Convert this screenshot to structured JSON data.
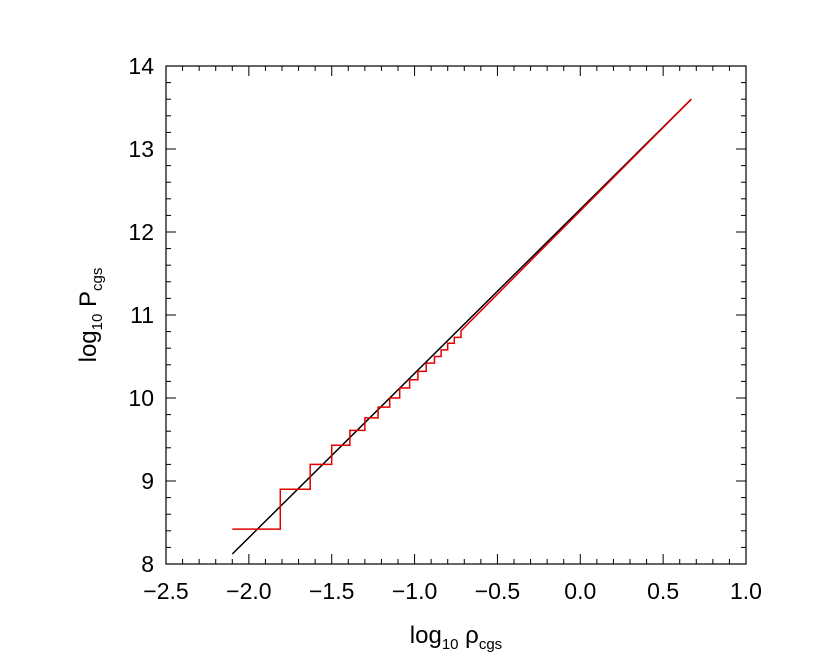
{
  "chart_data": {
    "type": "line",
    "title": "",
    "xlabel": {
      "base": "log",
      "sub1": "10",
      "mid": " ρ",
      "sub2": "cgs"
    },
    "ylabel": {
      "base": "log",
      "sub1": "10",
      "mid": " P",
      "sub2": "cgs"
    },
    "xlim": [
      -2.5,
      1.0
    ],
    "ylim": [
      8,
      14
    ],
    "x_ticks": [
      "−2.5",
      "−2.0",
      "−1.5",
      "−1.0",
      "−0.5",
      "0.0",
      "0.5",
      "1.0"
    ],
    "y_ticks": [
      "8",
      "9",
      "10",
      "11",
      "12",
      "13",
      "14"
    ],
    "legend": "none",
    "grid": false,
    "series": [
      {
        "color": "#000000",
        "style": "line",
        "x": [
          -2.1,
          0.67
        ],
        "y": [
          8.12,
          13.6
        ]
      },
      {
        "color": "#e00000",
        "style": "step",
        "x": [
          -2.1,
          -1.81,
          -1.81,
          -1.63,
          -1.63,
          -1.5,
          -1.5,
          -1.39,
          -1.39,
          -1.3,
          -1.3,
          -1.22,
          -1.22,
          -1.15,
          -1.15,
          -1.09,
          -1.09,
          -1.03,
          -1.03,
          -0.98,
          -0.98,
          -0.93,
          -0.93,
          -0.88,
          -0.88,
          -0.84,
          -0.84,
          -0.8,
          -0.8,
          -0.76,
          -0.76,
          -0.72,
          -0.72,
          0.67
        ],
        "y": [
          8.42,
          8.42,
          8.9,
          8.9,
          9.2,
          9.2,
          9.43,
          9.43,
          9.61,
          9.61,
          9.76,
          9.76,
          9.89,
          9.89,
          10.0,
          10.0,
          10.12,
          10.12,
          10.22,
          10.22,
          10.32,
          10.32,
          10.42,
          10.42,
          10.5,
          10.5,
          10.58,
          10.58,
          10.66,
          10.66,
          10.73,
          10.73,
          10.81,
          13.6
        ]
      }
    ]
  }
}
